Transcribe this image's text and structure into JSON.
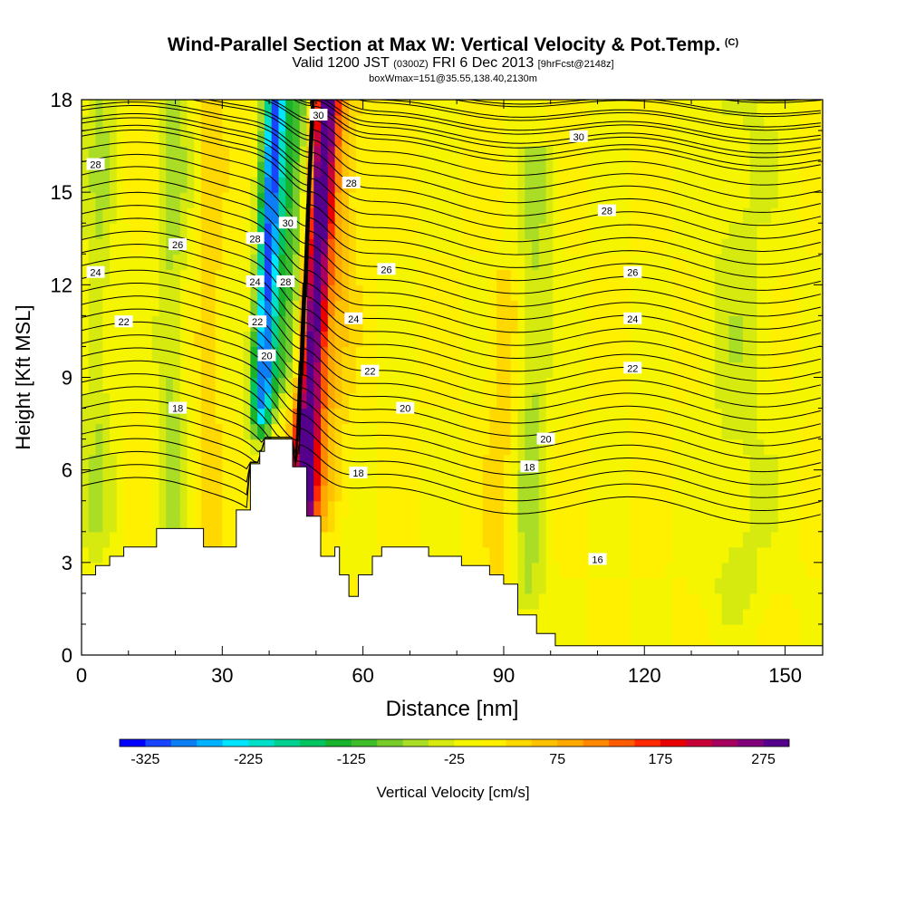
{
  "chart_data": {
    "type": "heatmap",
    "title": "Wind-Parallel Section at Max W: Vertical Velocity & Pot.Temp.",
    "title_mark": "(C)",
    "subtitle_main": "Valid 1200 JST",
    "subtitle_utc": "(0300Z)",
    "subtitle_date": "FRI 6 Dec 2013",
    "subtitle_fcst": "[9hrFcst@2148z]",
    "subtitle2": "boxWmax=151@35.55,138.40,2130m",
    "xlabel": "Distance [nm]",
    "ylabel": "Height [Kft MSL]",
    "xlim": [
      0,
      158
    ],
    "ylim": [
      0,
      18
    ],
    "xticks": [
      0,
      30,
      60,
      90,
      120,
      150
    ],
    "xtick_labels": [
      "0",
      "30",
      "60",
      "90",
      "120",
      "150"
    ],
    "yticks": [
      0,
      3,
      6,
      9,
      12,
      15,
      18
    ],
    "ytick_labels": [
      "0",
      "3",
      "6",
      "9",
      "12",
      "15",
      "18"
    ],
    "colorbar_label": "Vertical Velocity [cm/s]",
    "colorbar_range": [
      -350,
      300
    ],
    "colorbar_step": 25,
    "colorbar_ticks": [
      "-325",
      "-225",
      "-125",
      "-25",
      "75",
      "175",
      "275"
    ],
    "colorbar_colors": [
      "#0000ff",
      "#1a45ff",
      "#0c7ff5",
      "#00b2ff",
      "#00e5ff",
      "#00e0c8",
      "#00d190",
      "#00c460",
      "#18b22c",
      "#3fbc2a",
      "#77cc2a",
      "#aadd25",
      "#d6ea10",
      "#f5f500",
      "#fff000",
      "#ffd800",
      "#ffc200",
      "#ffa800",
      "#ff8800",
      "#ff5c00",
      "#ff2a00",
      "#e80000",
      "#c80038",
      "#a80060",
      "#7f007a",
      "#55008c"
    ],
    "terrain": [
      [
        0,
        2.6
      ],
      [
        3,
        2.6
      ],
      [
        3,
        2.9
      ],
      [
        6,
        2.9
      ],
      [
        6,
        3.2
      ],
      [
        9,
        3.2
      ],
      [
        9,
        3.5
      ],
      [
        16,
        3.5
      ],
      [
        16,
        4.1
      ],
      [
        26,
        4.1
      ],
      [
        26,
        3.5
      ],
      [
        33,
        3.5
      ],
      [
        33,
        4.7
      ],
      [
        36,
        4.7
      ],
      [
        36,
        6.2
      ],
      [
        38,
        6.2
      ],
      [
        38,
        6.6
      ],
      [
        39,
        6.6
      ],
      [
        39,
        7.0
      ],
      [
        45,
        7.0
      ],
      [
        45,
        6.1
      ],
      [
        48,
        6.1
      ],
      [
        48,
        4.5
      ],
      [
        51,
        4.5
      ],
      [
        51,
        3.2
      ],
      [
        54,
        3.2
      ],
      [
        54,
        3.5
      ],
      [
        55,
        3.5
      ],
      [
        55,
        2.6
      ],
      [
        57,
        2.6
      ],
      [
        57,
        1.9
      ],
      [
        59,
        1.9
      ],
      [
        59,
        2.6
      ],
      [
        62,
        2.6
      ],
      [
        62,
        3.2
      ],
      [
        64,
        3.2
      ],
      [
        64,
        3.5
      ],
      [
        74,
        3.5
      ],
      [
        74,
        3.2
      ],
      [
        81,
        3.2
      ],
      [
        81,
        2.9
      ],
      [
        87,
        2.9
      ],
      [
        87,
        2.6
      ],
      [
        90,
        2.6
      ],
      [
        90,
        2.3
      ],
      [
        93,
        2.3
      ],
      [
        93,
        1.3
      ],
      [
        97,
        1.3
      ],
      [
        97,
        0.7
      ],
      [
        101,
        0.7
      ],
      [
        101,
        0.3
      ],
      [
        158,
        0.3
      ]
    ],
    "w_field": {
      "background": 0,
      "sources": [
        {
          "x": 38,
          "y_from": 7,
          "y_to": 18,
          "slope": 0.3,
          "sigma_x": 1.6,
          "amp": -260
        },
        {
          "x": 42,
          "y_from": 8,
          "y_to": 18,
          "slope": 0.42,
          "sigma_x": 3.2,
          "amp": -120
        },
        {
          "x": 46,
          "y_from": 2,
          "y_to": 18,
          "slope": 0.38,
          "sigma_x": 1.8,
          "amp": 250
        },
        {
          "x": 49,
          "y_from": 4,
          "y_to": 18,
          "slope": 0.36,
          "sigma_x": 3.8,
          "amp": 90
        },
        {
          "x": 19,
          "y_from": 3,
          "y_to": 18,
          "slope": 0.05,
          "sigma_x": 2.2,
          "amp": -55
        },
        {
          "x": 27,
          "y_from": 3,
          "y_to": 18,
          "slope": 0.05,
          "sigma_x": 1.8,
          "amp": 45
        },
        {
          "x": 3,
          "y_from": 3,
          "y_to": 18,
          "slope": 0.05,
          "sigma_x": 2.5,
          "amp": -45
        },
        {
          "x": 95,
          "y_from": 1,
          "y_to": 16,
          "slope": 0.15,
          "sigma_x": 2.5,
          "amp": -55
        },
        {
          "x": 89,
          "y_from": 1,
          "y_to": 12,
          "slope": 0.12,
          "sigma_x": 2.2,
          "amp": 40
        },
        {
          "x": 140,
          "y_from": 1,
          "y_to": 18,
          "slope": 0.0,
          "sigma_x": 5,
          "amp": -35
        }
      ]
    },
    "theta_levels": [
      {
        "base": 16.5,
        "count": 6,
        "start_value": 16
      },
      {
        "base": 5.0,
        "count": 33,
        "start_value": 18
      }
    ],
    "isotherm_labels": [
      {
        "text": "28",
        "x": 3,
        "y": 15.9
      },
      {
        "text": "26",
        "x": 20.5,
        "y": 13.3
      },
      {
        "text": "24",
        "x": 3,
        "y": 12.4
      },
      {
        "text": "22",
        "x": 9,
        "y": 10.8
      },
      {
        "text": "18",
        "x": 20.5,
        "y": 8.0
      },
      {
        "text": "28",
        "x": 37,
        "y": 13.5
      },
      {
        "text": "24",
        "x": 37,
        "y": 12.1
      },
      {
        "text": "22",
        "x": 37.5,
        "y": 10.8
      },
      {
        "text": "20",
        "x": 39.5,
        "y": 9.7
      },
      {
        "text": "30",
        "x": 44,
        "y": 14.0
      },
      {
        "text": "28",
        "x": 43.5,
        "y": 12.1
      },
      {
        "text": "30",
        "x": 50.5,
        "y": 17.5
      },
      {
        "text": "28",
        "x": 57.5,
        "y": 15.3
      },
      {
        "text": "26",
        "x": 65,
        "y": 12.5
      },
      {
        "text": "24",
        "x": 58,
        "y": 10.9
      },
      {
        "text": "22",
        "x": 61.5,
        "y": 9.2
      },
      {
        "text": "20",
        "x": 69,
        "y": 8.0
      },
      {
        "text": "18",
        "x": 59,
        "y": 5.9
      },
      {
        "text": "30",
        "x": 106,
        "y": 16.8
      },
      {
        "text": "28",
        "x": 112,
        "y": 14.4
      },
      {
        "text": "26",
        "x": 117.5,
        "y": 12.4
      },
      {
        "text": "24",
        "x": 117.5,
        "y": 10.9
      },
      {
        "text": "22",
        "x": 117.5,
        "y": 9.3
      },
      {
        "text": "20",
        "x": 99,
        "y": 7.0
      },
      {
        "text": "18",
        "x": 95.5,
        "y": 6.1
      },
      {
        "text": "16",
        "x": 110,
        "y": 3.1
      }
    ]
  }
}
